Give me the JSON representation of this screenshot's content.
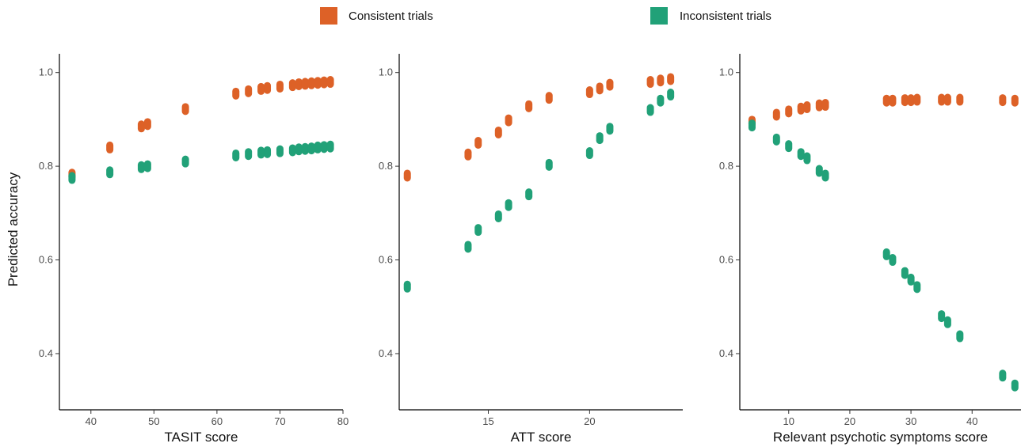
{
  "legend": {
    "position": "top-center",
    "items": [
      {
        "label": "Consistent trials",
        "color": "#DD6127"
      },
      {
        "label": "Inconsistent trials",
        "color": "#21A178"
      }
    ]
  },
  "shared_ylabel": "Predicted accuracy",
  "chart_data": [
    {
      "type": "scatter",
      "xlabel": "TASIT score",
      "ylabel": "Predicted accuracy",
      "xlim": [
        35,
        80
      ],
      "ylim": [
        0.28,
        1.04
      ],
      "xticks": [
        40,
        50,
        60,
        70,
        80
      ],
      "yticks": [
        0.4,
        0.6,
        0.8,
        1.0
      ],
      "grid": false,
      "series": [
        {
          "name": "Consistent trials",
          "color": "#DD6127",
          "x": [
            37,
            43,
            48,
            49,
            55,
            63,
            65,
            67,
            68,
            70,
            72,
            73,
            74,
            75,
            76,
            77,
            78
          ],
          "y": [
            0.782,
            0.84,
            0.885,
            0.89,
            0.922,
            0.955,
            0.96,
            0.965,
            0.967,
            0.97,
            0.973,
            0.975,
            0.976,
            0.977,
            0.978,
            0.979,
            0.98
          ]
        },
        {
          "name": "Inconsistent trials",
          "color": "#21A178",
          "x": [
            37,
            43,
            48,
            49,
            55,
            63,
            65,
            67,
            68,
            70,
            72,
            73,
            74,
            75,
            76,
            77,
            78
          ],
          "y": [
            0.775,
            0.787,
            0.798,
            0.8,
            0.81,
            0.823,
            0.826,
            0.829,
            0.83,
            0.832,
            0.834,
            0.836,
            0.837,
            0.838,
            0.84,
            0.841,
            0.842
          ]
        }
      ]
    },
    {
      "type": "scatter",
      "xlabel": "ATT score",
      "ylabel": "Predicted accuracy",
      "xlim": [
        10.6,
        24.6
      ],
      "ylim": [
        0.28,
        1.04
      ],
      "xticks": [
        15,
        20
      ],
      "yticks": [
        0.4,
        0.6,
        0.8,
        1.0
      ],
      "grid": false,
      "series": [
        {
          "name": "Consistent trials",
          "color": "#DD6127",
          "x": [
            11,
            14,
            14.5,
            15.5,
            16,
            17,
            18,
            20,
            20.5,
            21,
            23,
            23.5,
            24
          ],
          "y": [
            0.78,
            0.825,
            0.85,
            0.872,
            0.898,
            0.928,
            0.946,
            0.958,
            0.966,
            0.974,
            0.98,
            0.983,
            0.986
          ]
        },
        {
          "name": "Inconsistent trials",
          "color": "#21A178",
          "x": [
            11,
            14,
            14.5,
            15.5,
            16,
            17,
            18,
            20,
            20.5,
            21,
            23,
            23.5,
            24
          ],
          "y": [
            0.543,
            0.628,
            0.664,
            0.693,
            0.717,
            0.74,
            0.803,
            0.828,
            0.86,
            0.88,
            0.92,
            0.94,
            0.953
          ]
        }
      ]
    },
    {
      "type": "scatter",
      "xlabel": "Relevant psychotic symptoms score",
      "ylabel": "Predicted accuracy",
      "xlim": [
        2,
        48
      ],
      "ylim": [
        0.28,
        1.04
      ],
      "xticks": [
        10,
        20,
        30,
        40
      ],
      "yticks": [
        0.4,
        0.6,
        0.8,
        1.0
      ],
      "grid": false,
      "series": [
        {
          "name": "Consistent trials",
          "color": "#DD6127",
          "x": [
            4,
            8,
            10,
            12,
            13,
            15,
            16,
            26,
            27,
            29,
            30,
            31,
            35,
            36,
            38,
            45,
            47
          ],
          "y": [
            0.895,
            0.91,
            0.917,
            0.923,
            0.926,
            0.93,
            0.931,
            0.94,
            0.94,
            0.941,
            0.941,
            0.942,
            0.942,
            0.942,
            0.942,
            0.941,
            0.94
          ]
        },
        {
          "name": "Inconsistent trials",
          "color": "#21A178",
          "x": [
            4,
            8,
            10,
            12,
            13,
            15,
            16,
            26,
            27,
            29,
            30,
            31,
            35,
            36,
            38,
            45,
            47
          ],
          "y": [
            0.887,
            0.857,
            0.843,
            0.826,
            0.817,
            0.79,
            0.78,
            0.612,
            0.6,
            0.572,
            0.558,
            0.542,
            0.48,
            0.467,
            0.437,
            0.353,
            0.332
          ]
        }
      ]
    }
  ]
}
